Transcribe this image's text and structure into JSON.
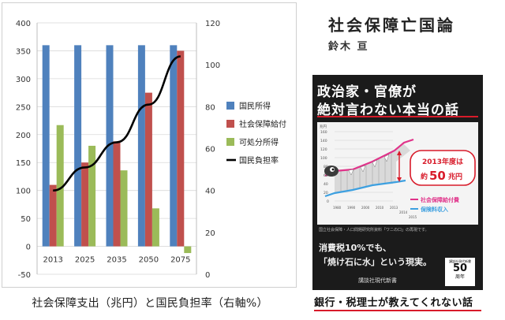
{
  "chart_data": {
    "type": "bar",
    "categories": [
      "2013",
      "2025",
      "2035",
      "2050",
      "2075"
    ],
    "series": [
      {
        "name": "国民所得",
        "color": "#4f81bd",
        "axis": "left",
        "values": [
          360,
          360,
          360,
          360,
          360
        ]
      },
      {
        "name": "社会保障給付",
        "color": "#c0504d",
        "axis": "left",
        "values": [
          110,
          150,
          188,
          275,
          350
        ]
      },
      {
        "name": "可処分所得",
        "color": "#9bbb59",
        "axis": "left",
        "values": [
          217,
          180,
          136,
          68,
          -12
        ]
      },
      {
        "name": "国民負担率",
        "color": "#000000",
        "axis": "right",
        "type": "line",
        "values": [
          40,
          51,
          63,
          81,
          104
        ]
      }
    ],
    "left_axis": {
      "min": -50,
      "max": 400,
      "step": 50,
      "ticks": [
        "-50",
        "0",
        "50",
        "100",
        "150",
        "200",
        "250",
        "300",
        "350",
        "400"
      ]
    },
    "right_axis": {
      "min": 0,
      "max": 120,
      "step": 20,
      "ticks": [
        "0",
        "20",
        "40",
        "60",
        "80",
        "100",
        "120"
      ]
    },
    "legend_position": "right",
    "caption": "社会保障支出（兆円）と国民負担率（右軸%）"
  },
  "book": {
    "title": "社会保障亡国論",
    "author": "鈴木 亘",
    "cover_headline_1": "政治家・官僚が",
    "cover_headline_2": "絶対言わない本当の話",
    "mini_chart": {
      "unit": "兆円",
      "y_ticks": [
        "160",
        "140",
        "120",
        "100",
        "80",
        "60",
        "40",
        "20",
        "0"
      ],
      "x_ticks": [
        "1980",
        "1990",
        "2000",
        "2010",
        "2013",
        "2014",
        "2015"
      ],
      "badge_line1": "2013年度は",
      "badge_line2_prefix": "約",
      "badge_line2_value": "50",
      "badge_line2_suffix": "兆円",
      "legend_1": "社会保障給付費",
      "legend_2": "保険料収入"
    },
    "footnote": "国立社会保障・人口問題研究所資料「ワニの口」の再現です。",
    "cover_body_1": "消費税10%でも、",
    "cover_body_2": "「焼け石に水」という現実。",
    "publisher": "講談社現代新書",
    "anniversary_small": "講談社現代新書",
    "anniversary_number": "50",
    "anniversary_label": "周年",
    "tagline": "銀行・税理士が教えてくれない話"
  }
}
